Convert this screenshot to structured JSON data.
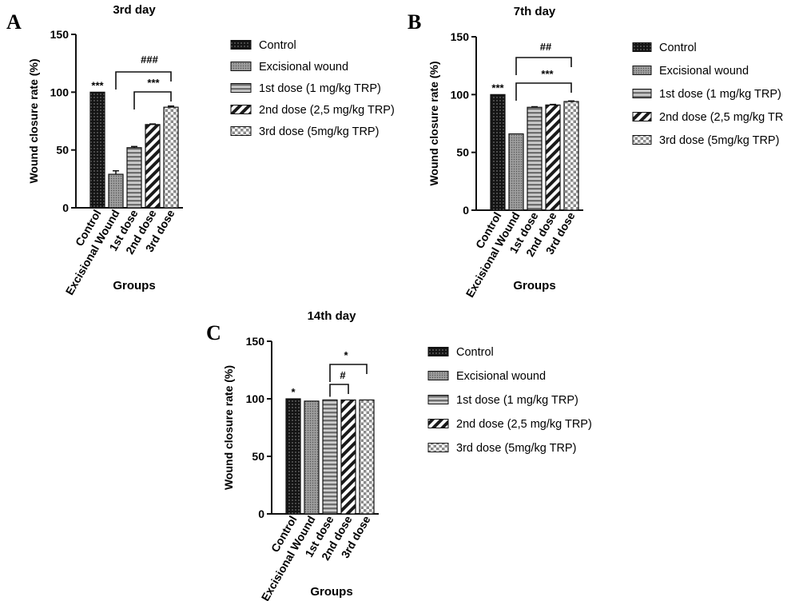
{
  "chart_data": [
    {
      "type": "bar",
      "panel": "A",
      "title": "3rd day",
      "xlabel": "Groups",
      "ylabel": "Wound closure rate (%)",
      "ylim": [
        0,
        150
      ],
      "yticks": [
        "0",
        "50",
        "100",
        "150"
      ],
      "categories": [
        "Control",
        "Excisional Wound",
        "1st dose",
        "2nd dose",
        "3rd dose"
      ],
      "values": [
        100,
        29,
        52,
        72,
        87
      ],
      "errors": [
        0,
        3,
        1,
        0.5,
        1
      ],
      "legend": [
        "Control",
        "Excisional wound",
        "1st dose (1 mg/kg TRP)",
        "2nd dose (2,5 mg/kg TRP)",
        "3rd dose (5mg/kg TRP)"
      ],
      "annotations": [
        {
          "text": "***",
          "on": "Control"
        },
        {
          "text": "###",
          "from": "Excisional Wound",
          "to": "3rd dose"
        },
        {
          "text": "***",
          "from": "1st dose",
          "to": "3rd dose"
        }
      ]
    },
    {
      "type": "bar",
      "panel": "B",
      "title": "7th day",
      "xlabel": "Groups",
      "ylabel": "Wound closure rate (%)",
      "ylim": [
        0,
        150
      ],
      "yticks": [
        "0",
        "50",
        "100",
        "150"
      ],
      "categories": [
        "Control",
        "Excisional Wound",
        "1st dose",
        "2nd dose",
        "3rd dose"
      ],
      "values": [
        100,
        66,
        89,
        91,
        94
      ],
      "errors": [
        0,
        0,
        0.5,
        0.5,
        0.5
      ],
      "legend": [
        "Control",
        "Excisional wound",
        "1st dose (1 mg/kg TRP)",
        "2nd dose (2,5 mg/kg TR",
        "3rd dose (5mg/kg TRP)"
      ],
      "annotations": [
        {
          "text": "***",
          "on": "Control"
        },
        {
          "text": "##",
          "from": "Excisional Wound",
          "to": "3rd dose"
        },
        {
          "text": "***",
          "from": "Excisional Wound",
          "to": "3rd dose"
        }
      ]
    },
    {
      "type": "bar",
      "panel": "C",
      "title": "14th day",
      "xlabel": "Groups",
      "ylabel": "Wound closure rate (%)",
      "ylim": [
        0,
        150
      ],
      "yticks": [
        "0",
        "50",
        "100",
        "150"
      ],
      "categories": [
        "Control",
        "Excisional Wound",
        "1st dose",
        "2nd dose",
        "3rd dose"
      ],
      "values": [
        100,
        98,
        99,
        99,
        99
      ],
      "errors": [
        0,
        0,
        0.3,
        0.3,
        0.3
      ],
      "legend": [
        "Control",
        "Excisional wound",
        "1st dose (1 mg/kg TRP)",
        "2nd dose (2,5 mg/kg TRP)",
        "3rd dose (5mg/kg TRP)"
      ],
      "annotations": [
        {
          "text": "*",
          "on": "Control"
        },
        {
          "text": "*",
          "from": "1st dose",
          "to": "3rd dose"
        },
        {
          "text": "#",
          "from": "1st dose",
          "to": "2nd dose"
        }
      ]
    }
  ]
}
